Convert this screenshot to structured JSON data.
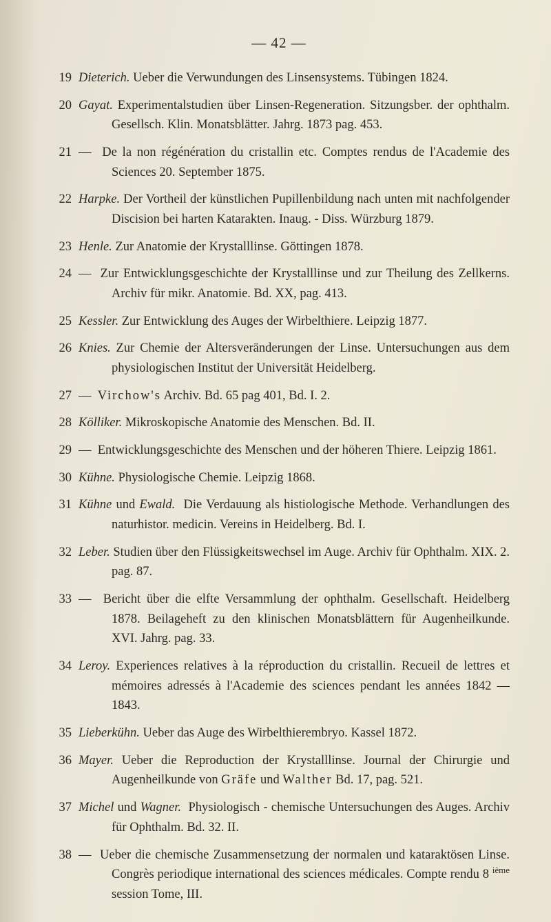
{
  "page": {
    "header": "—  42  —",
    "font_family": "Georgia serif",
    "body_fontsize_pt": 14,
    "header_fontsize_pt": 16,
    "text_color": "#2b2a25",
    "background_color": "#e8e3d5",
    "entries": [
      {
        "n": "19",
        "author": "Dieterich.",
        "text": "Ueber die Verwundungen des Linsensystems. Tübingen 1824."
      },
      {
        "n": "20",
        "author": "Gayat.",
        "text": "Experimentalstudien über Linsen-Regeneration. Sitzungsber. der ophthalm. Gesellsch. Klin. Monatsblätter. Jahrg. 1873 pag. 453."
      },
      {
        "n": "21",
        "author": "—",
        "text": "De la non régénération du cristallin etc. Comptes rendus de l'Academie des Sciences 20. September 1875."
      },
      {
        "n": "22",
        "author": "Harpke.",
        "text": "Der Vortheil der künstlichen Pupillenbildung nach unten mit nachfolgender Discision bei harten Katarakten. Inaug. - Diss. Würzburg 1879."
      },
      {
        "n": "23",
        "author": "Henle.",
        "text": "Zur Anatomie der Krystalllinse. Göttingen 1878."
      },
      {
        "n": "24",
        "author": "—",
        "text": "Zur Entwicklungsgeschichte der Krystalllinse und zur Theilung des Zellkerns. Archiv für mikr. Anatomie. Bd. XX, pag. 413."
      },
      {
        "n": "25",
        "author": "Kessler.",
        "text": "Zur Entwicklung des Auges der Wirbelthiere. Leipzig 1877."
      },
      {
        "n": "26",
        "author": "Knies.",
        "text": "Zur Chemie der Altersveränderungen der Linse. Untersuchungen aus dem physiologischen Institut der Universität Heidelberg."
      },
      {
        "n": "27",
        "author": "—",
        "text": "Virchow's Archiv. Bd. 65 pag 401, Bd. I. 2.",
        "spaced": "Virchow's"
      },
      {
        "n": "28",
        "author": "Kölliker.",
        "text": "Mikroskopische Anatomie des Menschen. Bd. II."
      },
      {
        "n": "29",
        "author": "—",
        "text": "Entwicklungsgeschichte des Menschen und der höheren Thiere. Leipzig 1861."
      },
      {
        "n": "30",
        "author": "Kühne.",
        "text": "Physiologische Chemie. Leipzig 1868."
      },
      {
        "n": "31",
        "author": "Kühne",
        "second_author": "Ewald.",
        "conj": " und ",
        "text": "Die Verdauung als histiologische Methode. Verhandlungen des naturhistor. medicin. Vereins in Heidelberg. Bd. I."
      },
      {
        "n": "32",
        "author": "Leber.",
        "text": "Studien über den Flüssigkeitswechsel im Auge. Archiv für Ophthalm. XIX. 2. pag. 87."
      },
      {
        "n": "33",
        "author": "—",
        "text": "Bericht über die elfte Versammlung der ophthalm. Gesellschaft. Heidelberg 1878. Beilageheft zu den klinischen Monatsblättern für Augenheilkunde. XVI. Jahrg. pag. 33."
      },
      {
        "n": "34",
        "author": "Leroy.",
        "text": "Experiences relatives à la réproduction du cristallin. Recueil de lettres et mémoires adressés à l'Academie des sciences pendant les années 1842 — 1843."
      },
      {
        "n": "35",
        "author": "Lieberkühn.",
        "text": "Ueber das Auge des Wirbelthierembryo. Kassel 1872."
      },
      {
        "n": "36",
        "author": "Mayer.",
        "text": "Ueber die Reproduction der Krystalllinse. Journal der Chirurgie und Augenheilkunde von Gräfe und Walther Bd. 17, pag. 521.",
        "spaced_names": [
          "Gräfe",
          "Walther"
        ]
      },
      {
        "n": "37",
        "author": "Michel",
        "second_author": "Wagner.",
        "conj": " und ",
        "text": "Physiologisch - chemische Untersuchungen des Auges. Archiv für Ophthalm. Bd. 32. II."
      },
      {
        "n": "38",
        "author": "—",
        "text": "Ueber die chemische Zusammensetzung der normalen und kataraktösen Linse. Congrès periodique international des sciences médicales. Compte rendu 8 ième session Tome, III.",
        "super": "ième"
      }
    ]
  }
}
